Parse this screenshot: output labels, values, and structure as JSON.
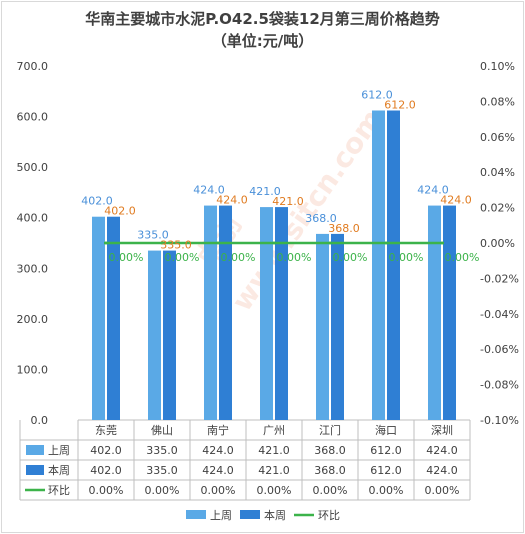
{
  "chart_data": {
    "type": "bar",
    "title": "华南主要城市水泥P.O42.5袋装12月第三周价格趋势",
    "subtitle": "（单位:元/吨）",
    "categories": [
      "东莞",
      "佛山",
      "南宁",
      "广州",
      "江门",
      "海口",
      "深圳"
    ],
    "series": [
      {
        "name": "上周",
        "type": "bar",
        "axis": "left",
        "color": "#5aa9e6",
        "values": [
          402.0,
          335.0,
          424.0,
          421.0,
          368.0,
          612.0,
          424.0
        ]
      },
      {
        "name": "本周",
        "type": "bar",
        "axis": "left",
        "color": "#2f7fd4",
        "values": [
          402.0,
          335.0,
          424.0,
          421.0,
          368.0,
          612.0,
          424.0
        ]
      },
      {
        "name": "环比",
        "type": "line",
        "axis": "right",
        "color": "#3cb34a",
        "values": [
          0.0,
          0.0,
          0.0,
          0.0,
          0.0,
          0.0,
          0.0
        ]
      }
    ],
    "ylim_left": [
      0,
      700
    ],
    "yticks_left": [
      "0.0",
      "100.0",
      "200.0",
      "300.0",
      "400.0",
      "500.0",
      "600.0",
      "700.0"
    ],
    "ylim_right": [
      -0.1,
      0.1
    ],
    "yticks_right": [
      "-0.10%",
      "-0.08%",
      "-0.06%",
      "-0.04%",
      "-0.02%",
      "0.00%",
      "0.02%",
      "0.04%",
      "0.06%",
      "0.08%",
      "0.10%"
    ],
    "prev_labels": [
      "402.0",
      "335.0",
      "424.0",
      "421.0",
      "368.0",
      "612.0",
      "424.0"
    ],
    "cur_labels": [
      "402.0",
      "335.0",
      "424.0",
      "421.0",
      "368.0",
      "612.0",
      "424.0"
    ],
    "chg_labels": [
      "0.00%",
      "0.00%",
      "0.00%",
      "0.00%",
      "0.00%",
      "0.00%",
      "0.00%"
    ],
    "grid": false,
    "legend": "bottom"
  },
  "watermark": {
    "mark": "卓创",
    "url": "www.sitcn.com",
    "color": "#e85a2a"
  }
}
